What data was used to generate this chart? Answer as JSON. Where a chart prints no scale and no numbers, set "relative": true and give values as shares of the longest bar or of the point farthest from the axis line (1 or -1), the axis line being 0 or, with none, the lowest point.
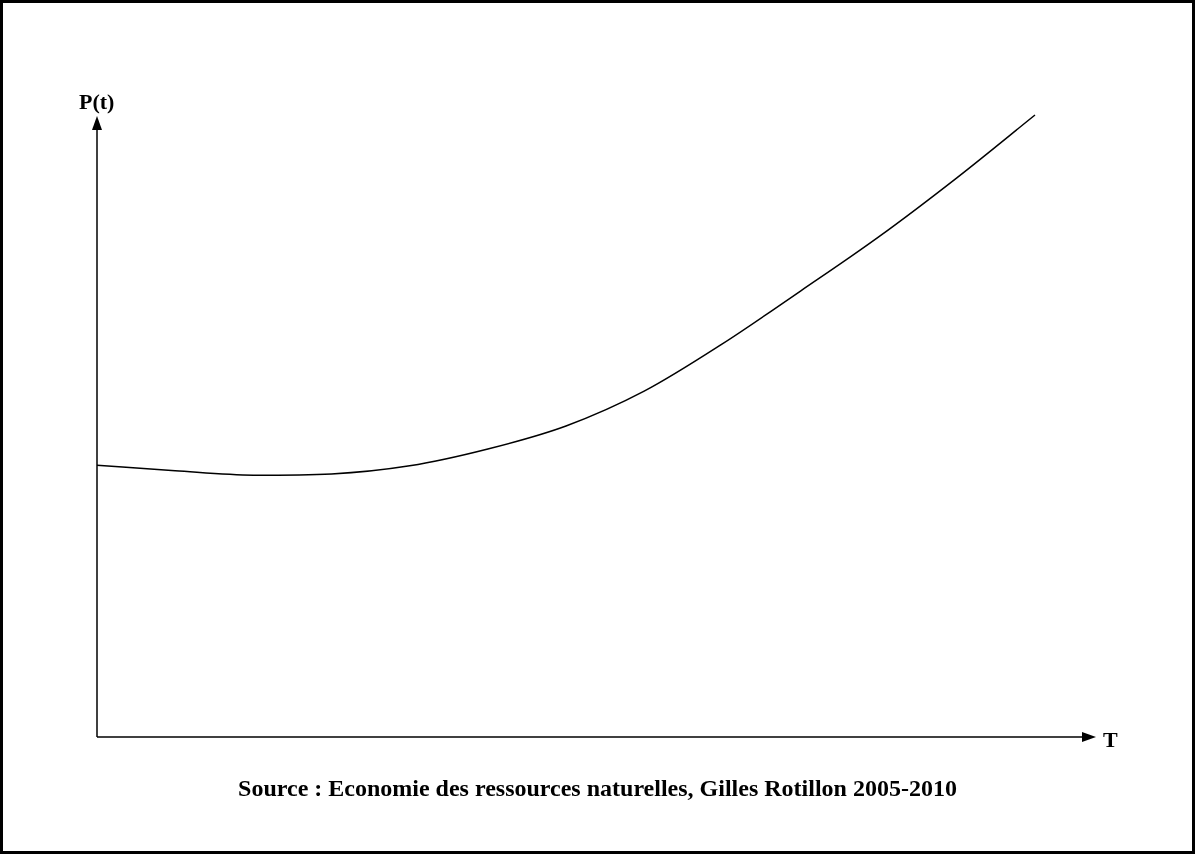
{
  "chart_data": {
    "type": "line",
    "xlabel": "T",
    "ylabel": "P(t)",
    "annotations": [
      "Source : Economie des ressources naturelles, Gilles Rotillon 2005-2010"
    ],
    "relative": true,
    "marker": "none",
    "line_style": "solid",
    "color": "#000000",
    "categories": [
      null,
      null,
      null,
      null,
      null,
      null,
      null,
      null,
      null,
      null,
      null,
      null,
      null
    ],
    "values": [
      0.437,
      0.428,
      0.421,
      0.423,
      0.436,
      0.463,
      0.5,
      0.556,
      0.632,
      0.717,
      0.804,
      0.899,
      1
    ]
  }
}
